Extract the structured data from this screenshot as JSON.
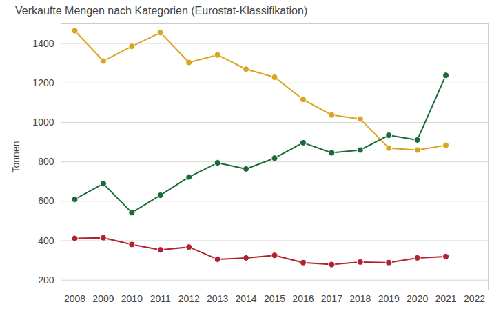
{
  "chart_data": {
    "type": "line",
    "title": "Verkaufte Mengen nach Kategorien (Eurostat-Klassifikation)",
    "y_label": "Tonnen",
    "x": [
      2008,
      2009,
      2010,
      2011,
      2012,
      2013,
      2014,
      2015,
      2016,
      2017,
      2018,
      2019,
      2020,
      2021,
      2022
    ],
    "series": [
      {
        "color": "#d9a521",
        "marker": "circle",
        "line_style": "solid",
        "values": [
          1465,
          1311,
          1386,
          1455,
          1304,
          1342,
          1270,
          1229,
          1116,
          1038,
          1017,
          870,
          860,
          884,
          null
        ]
      },
      {
        "color": "#1b6b3a",
        "marker": "circle",
        "line_style": "solid",
        "values": [
          610,
          689,
          542,
          631,
          723,
          795,
          764,
          819,
          897,
          846,
          860,
          935,
          911,
          1239,
          null
        ]
      },
      {
        "color": "#b3202e",
        "marker": "circle",
        "line_style": "solid",
        "values": [
          412,
          415,
          381,
          354,
          368,
          306,
          313,
          326,
          289,
          279,
          292,
          289,
          313,
          320,
          null
        ]
      }
    ],
    "xlim": [
      2008,
      2022
    ],
    "xticks": [
      2008,
      2009,
      2010,
      2011,
      2012,
      2013,
      2014,
      2015,
      2016,
      2017,
      2018,
      2019,
      2020,
      2021,
      2022
    ],
    "ylim": [
      150,
      1500
    ],
    "yticks": [
      200,
      400,
      600,
      800,
      1000,
      1200,
      1400
    ],
    "grid": true
  }
}
